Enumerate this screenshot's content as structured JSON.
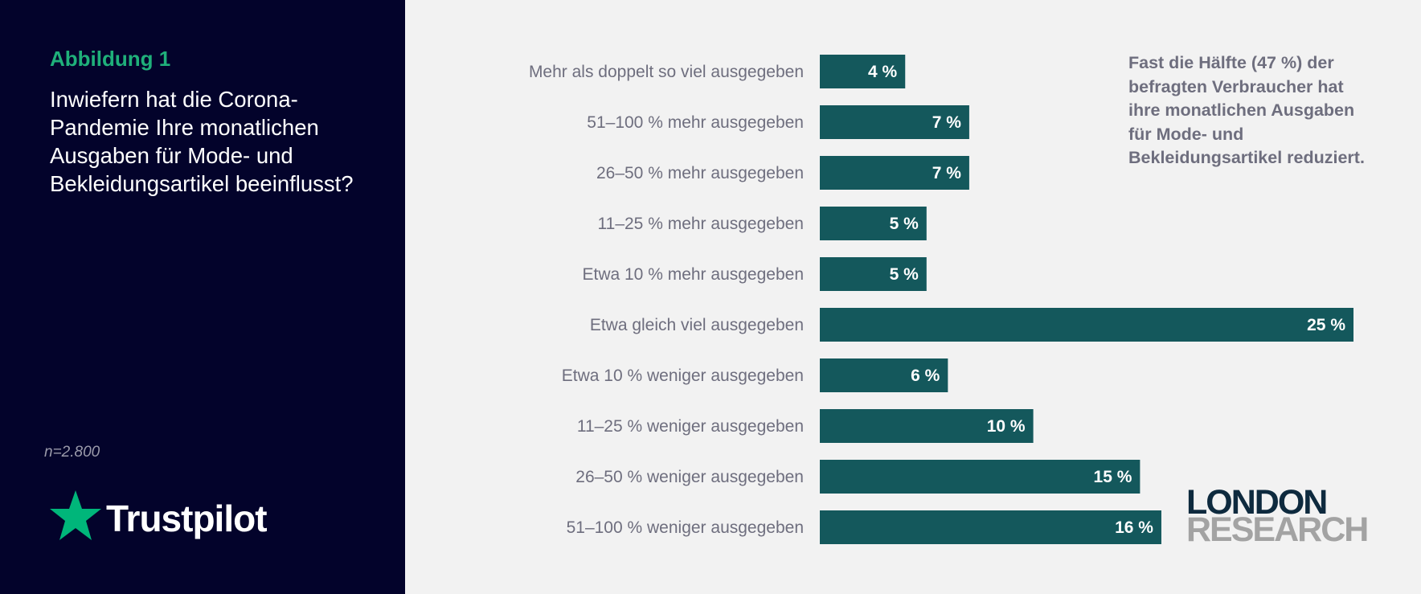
{
  "figure": {
    "label": "Abbildung 1",
    "question": "Inwiefern hat die Corona-Pandemie Ihre monatlichen Ausgaben für Mode- und Bekleidungsartikel beeinflusst?",
    "sample": "n=2.800"
  },
  "brand": {
    "name": "Trustpilot",
    "icon": "star-icon",
    "accent": "#00b67a"
  },
  "logo": {
    "line1": "LONDON",
    "line2": "RESEARCH"
  },
  "callout": "Fast die Hälfte (47 %) der befragten Verbraucher hat ihre monatlichen Ausgaben für Mode- und Bekleidungsartikel reduziert.",
  "colors": {
    "bar": "#14585c",
    "panel": "#03032b",
    "accent": "#1fb07a",
    "background": "#f2f2f2"
  },
  "chart_data": {
    "type": "bar",
    "orientation": "horizontal",
    "categories": [
      "Mehr als doppelt so viel ausgegeben",
      "51–100 % mehr ausgegeben",
      "26–50 % mehr ausgegeben",
      "11–25 % mehr ausgegeben",
      "Etwa 10 % mehr ausgegeben",
      "Etwa gleich viel ausgegeben",
      "Etwa 10 % weniger ausgegeben",
      "11–25 % weniger ausgegeben",
      "26–50 % weniger ausgegeben",
      "51–100 % weniger ausgegeben"
    ],
    "values": [
      4,
      7,
      7,
      5,
      5,
      25,
      6,
      10,
      15,
      16
    ],
    "value_labels": [
      "4 %",
      "7 %",
      "7 %",
      "5 %",
      "5 %",
      "25 %",
      "6 %",
      "10 %",
      "15 %",
      "16 %"
    ],
    "unit": "%",
    "xlim": [
      0,
      25
    ],
    "grid": false,
    "legend": "none"
  }
}
